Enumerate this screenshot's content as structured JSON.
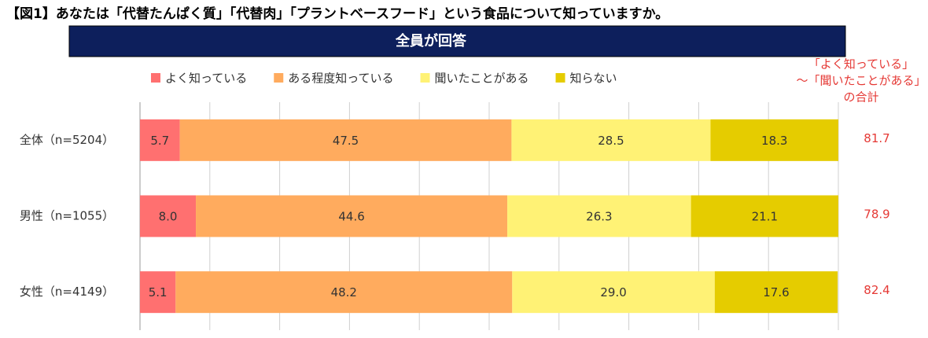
{
  "chart_data": {
    "type": "stacked-bar-horizontal",
    "title": "【図1】あなたは「代替たんぱく質」「代替肉」「プラントベースフード」という食品について知っていますか。",
    "subtitle": "全員が回答",
    "categories": [
      "全体（n=5204）",
      "男性（n=1055）",
      "女性（n=4149）"
    ],
    "series": [
      {
        "name": "よく知っている",
        "color": "#ff7070",
        "values": [
          5.7,
          8.0,
          5.1
        ],
        "value_labels": [
          "5.7",
          "8.0",
          "5.1"
        ]
      },
      {
        "name": "ある程度知っている",
        "color": "#ffab5e",
        "values": [
          47.5,
          44.6,
          48.2
        ],
        "value_labels": [
          "47.5",
          "44.6",
          "48.2"
        ]
      },
      {
        "name": "聞いたことがある",
        "color": "#fff275",
        "values": [
          28.5,
          26.3,
          29.0
        ],
        "value_labels": [
          "28.5",
          "26.3",
          "29.0"
        ]
      },
      {
        "name": "知らない",
        "color": "#e5cc00",
        "values": [
          18.3,
          21.1,
          17.6
        ],
        "value_labels": [
          "18.3",
          "21.1",
          "17.6"
        ]
      }
    ],
    "totals": {
      "label": [
        "「よく知っている」",
        "～「聞いたことがある」",
        "の合計"
      ],
      "values": [
        81.7,
        78.9,
        82.4
      ]
    },
    "xlim": [
      0,
      100
    ],
    "xticks": [
      0,
      10,
      20,
      30,
      40,
      50,
      60,
      70,
      80,
      90,
      100
    ],
    "grid": true
  }
}
